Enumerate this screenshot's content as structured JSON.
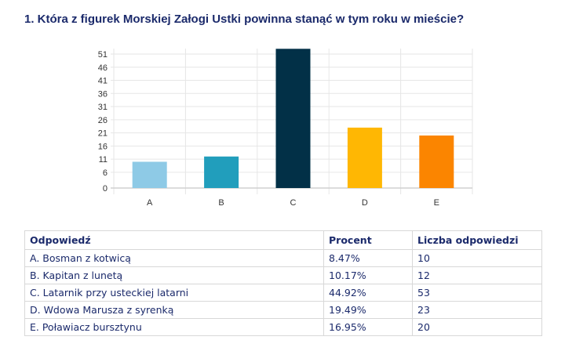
{
  "title": "1. Która z figurek Morskiej Załogi Ustki powinna stanąć w tym roku w mieście?",
  "chart_data": {
    "type": "bar",
    "categories": [
      "A",
      "B",
      "C",
      "D",
      "E"
    ],
    "values": [
      10,
      12,
      53,
      23,
      20
    ],
    "colors": [
      "#8ecae6",
      "#219ebc",
      "#023047",
      "#ffb703",
      "#fb8500"
    ],
    "yticks": [
      0,
      6,
      11,
      16,
      21,
      26,
      31,
      36,
      41,
      46,
      51
    ],
    "ylim": [
      0,
      53
    ],
    "grid": true
  },
  "table": {
    "headers": [
      "Odpowiedź",
      "Procent",
      "Liczba odpowiedzi"
    ],
    "rows": [
      [
        "A. Bosman z kotwicą",
        "8.47%",
        "10"
      ],
      [
        "B. Kapitan z lunetą",
        "10.17%",
        "12"
      ],
      [
        "C. Latarnik przy usteckiej latarni",
        "44.92%",
        "53"
      ],
      [
        "D. Wdowa Marusza z syrenką",
        "19.49%",
        "23"
      ],
      [
        "E. Poławiacz bursztynu",
        "16.95%",
        "20"
      ]
    ]
  }
}
